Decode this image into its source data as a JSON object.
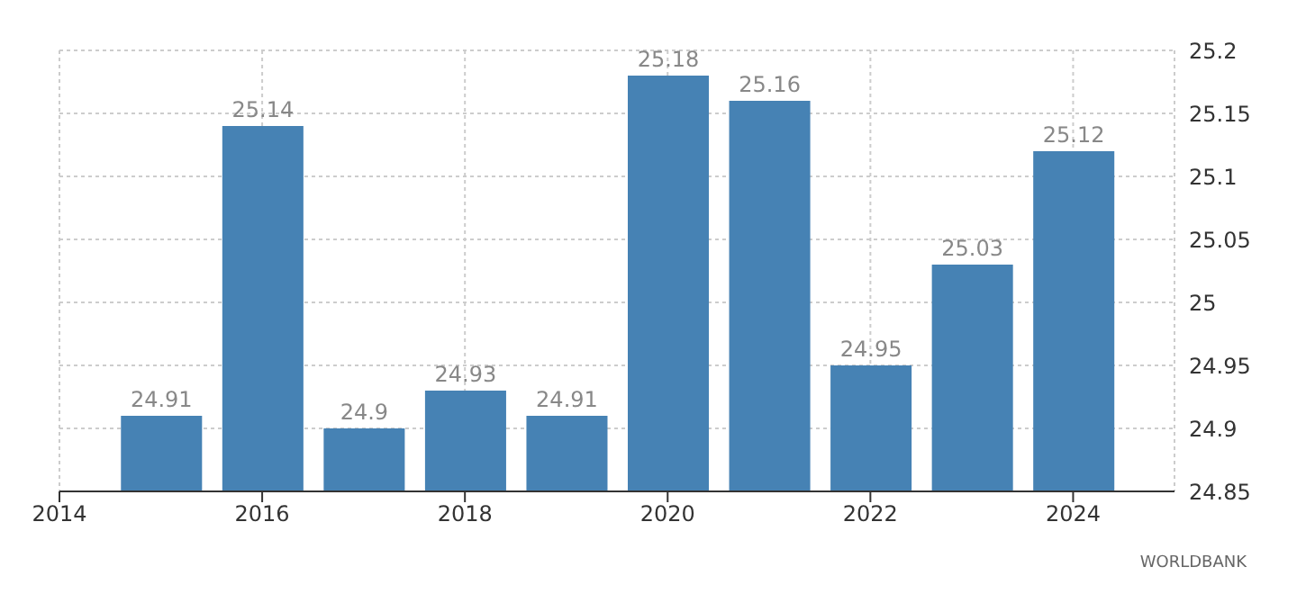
{
  "chart_data": {
    "type": "bar",
    "x": [
      2015,
      2016,
      2017,
      2018,
      2019,
      2020,
      2021,
      2022,
      2023,
      2024
    ],
    "values": [
      24.91,
      25.14,
      24.9,
      24.93,
      24.91,
      25.18,
      25.16,
      24.95,
      25.03,
      25.12
    ],
    "color": "#4682b4",
    "data_labels": true,
    "xlim": [
      2014,
      2025
    ],
    "xticks": [
      2014,
      2016,
      2018,
      2020,
      2022,
      2024
    ],
    "ylim": [
      24.85,
      25.2
    ],
    "yticks": [
      24.85,
      24.9,
      24.95,
      25,
      25.05,
      25.1,
      25.15,
      25.2
    ],
    "grid": true,
    "annotations": [
      "WORLDBANK"
    ]
  }
}
